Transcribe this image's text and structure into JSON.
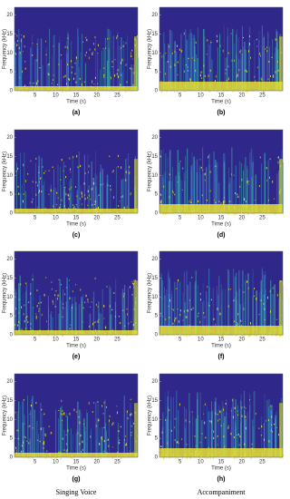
{
  "chart_data": [
    {
      "type": "spectrogram",
      "panel_label": "(a)",
      "xlabel": "Time (s)",
      "ylabel": "Frequency (kHz)",
      "xlim": [
        0,
        30
      ],
      "ylim": [
        0,
        22
      ],
      "xticks": [
        5,
        10,
        15,
        20,
        25
      ],
      "yticks": [
        0,
        5,
        10,
        15,
        20
      ]
    },
    {
      "type": "spectrogram",
      "panel_label": "(b)",
      "xlabel": "Time (s)",
      "ylabel": "Frequency (kHz)",
      "xlim": [
        0,
        30
      ],
      "ylim": [
        0,
        22
      ],
      "xticks": [
        5,
        10,
        15,
        20,
        25
      ],
      "yticks": [
        0,
        5,
        10,
        15,
        20
      ]
    },
    {
      "type": "spectrogram",
      "panel_label": "(c)",
      "xlabel": "Time (s)",
      "ylabel": "Frequency (kHz)",
      "xlim": [
        0,
        30
      ],
      "ylim": [
        0,
        22
      ],
      "xticks": [
        5,
        10,
        15,
        20,
        25
      ],
      "yticks": [
        0,
        5,
        10,
        15,
        20
      ]
    },
    {
      "type": "spectrogram",
      "panel_label": "(d)",
      "xlabel": "Time (s)",
      "ylabel": "Frequency (kHz)",
      "xlim": [
        0,
        30
      ],
      "ylim": [
        0,
        22
      ],
      "xticks": [
        5,
        10,
        15,
        20,
        25
      ],
      "yticks": [
        0,
        5,
        10,
        15,
        20
      ]
    },
    {
      "type": "spectrogram",
      "panel_label": "(e)",
      "xlabel": "Time (s)",
      "ylabel": "Frequency (kHz)",
      "xlim": [
        0,
        30
      ],
      "ylim": [
        0,
        22
      ],
      "xticks": [
        5,
        10,
        15,
        20,
        25
      ],
      "yticks": [
        0,
        5,
        10,
        15,
        20
      ]
    },
    {
      "type": "spectrogram",
      "panel_label": "(f)",
      "xlabel": "Time (s)",
      "ylabel": "Frequency (kHz)",
      "xlim": [
        0,
        30
      ],
      "ylim": [
        0,
        22
      ],
      "xticks": [
        5,
        10,
        15,
        20,
        25
      ],
      "yticks": [
        0,
        5,
        10,
        15,
        20
      ]
    },
    {
      "type": "spectrogram",
      "panel_label": "(g)",
      "xlabel": "Time (s)",
      "ylabel": "Frequency (kHz)",
      "xlim": [
        0,
        30
      ],
      "ylim": [
        0,
        22
      ],
      "xticks": [
        5,
        10,
        15,
        20,
        25
      ],
      "yticks": [
        0,
        5,
        10,
        15,
        20
      ]
    },
    {
      "type": "spectrogram",
      "panel_label": "(h)",
      "xlabel": "Time (s)",
      "ylabel": "Frequency (kHz)",
      "xlim": [
        0,
        30
      ],
      "ylim": [
        0,
        22
      ],
      "xticks": [
        5,
        10,
        15,
        20,
        25
      ],
      "yticks": [
        0,
        5,
        10,
        15,
        20
      ]
    }
  ],
  "column_labels": [
    "Singing Voice",
    "Accompaniment"
  ]
}
